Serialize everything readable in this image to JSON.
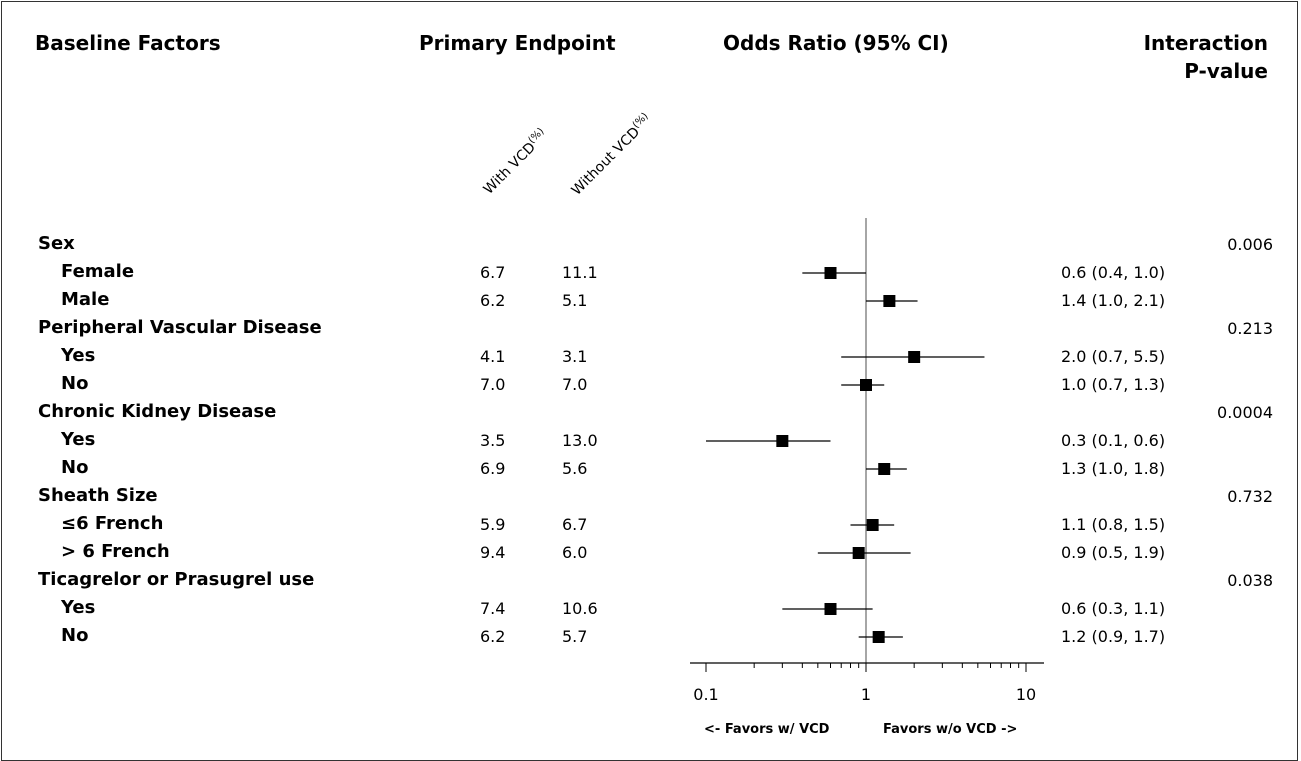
{
  "headers": {
    "factors": "Baseline Factors",
    "endpoint": "Primary Endpoint",
    "or": "Odds Ratio (95% CI)",
    "pvalue_line1": "Interaction",
    "pvalue_line2": "P-value",
    "with_vcd": "With VCD",
    "without_vcd": "Without VCD",
    "pct": "(%)"
  },
  "chart_data": {
    "type": "forest",
    "x_scale": "log",
    "xlim": [
      0.1,
      10
    ],
    "reference_line": 1,
    "x_ticks": [
      "0.1",
      "1",
      "10"
    ],
    "favor_left": "<- Favors w/ VCD",
    "favor_right": "Favors w/o VCD ->",
    "rows": [
      {
        "label": "Sex",
        "group": true,
        "pvalue": "0.006"
      },
      {
        "label": "Female",
        "with": "6.7",
        "without": "11.1",
        "or": 0.6,
        "lo": 0.4,
        "hi": 1.0,
        "or_text": "0.6 (0.4, 1.0)"
      },
      {
        "label": "Male",
        "with": "6.2",
        "without": "5.1",
        "or": 1.4,
        "lo": 1.0,
        "hi": 2.1,
        "or_text": "1.4 (1.0, 2.1)"
      },
      {
        "label": "Peripheral Vascular Disease",
        "group": true,
        "pvalue": "0.213"
      },
      {
        "label": "Yes",
        "with": "4.1",
        "without": "3.1",
        "or": 2.0,
        "lo": 0.7,
        "hi": 5.5,
        "or_text": "2.0 (0.7, 5.5)"
      },
      {
        "label": "No",
        "with": "7.0",
        "without": "7.0",
        "or": 1.0,
        "lo": 0.7,
        "hi": 1.3,
        "or_text": "1.0 (0.7, 1.3)"
      },
      {
        "label": "Chronic Kidney Disease",
        "group": true,
        "pvalue": "0.0004"
      },
      {
        "label": "Yes",
        "with": "3.5",
        "without": "13.0",
        "or": 0.3,
        "lo": 0.1,
        "hi": 0.6,
        "or_text": "0.3 (0.1, 0.6)"
      },
      {
        "label": "No",
        "with": "6.9",
        "without": "5.6",
        "or": 1.3,
        "lo": 1.0,
        "hi": 1.8,
        "or_text": "1.3 (1.0, 1.8)"
      },
      {
        "label": "Sheath Size",
        "group": true,
        "pvalue": "0.732"
      },
      {
        "label": "≤6 French",
        "with": "5.9",
        "without": "6.7",
        "or": 1.1,
        "lo": 0.8,
        "hi": 1.5,
        "or_text": "1.1 (0.8, 1.5)"
      },
      {
        "label": "> 6 French",
        "with": "9.4",
        "without": "6.0",
        "or": 0.9,
        "lo": 0.5,
        "hi": 1.9,
        "or_text": "0.9 (0.5, 1.9)"
      },
      {
        "label": "Ticagrelor or Prasugrel use",
        "group": true,
        "pvalue": "0.038"
      },
      {
        "label": "Yes",
        "with": "7.4",
        "without": "10.6",
        "or": 0.6,
        "lo": 0.3,
        "hi": 1.1,
        "or_text": "0.6 (0.3, 1.1)"
      },
      {
        "label": "No",
        "with": "6.2",
        "without": "5.7",
        "or": 1.2,
        "lo": 0.9,
        "hi": 1.7,
        "or_text": "1.2 (0.9, 1.7)"
      }
    ]
  }
}
